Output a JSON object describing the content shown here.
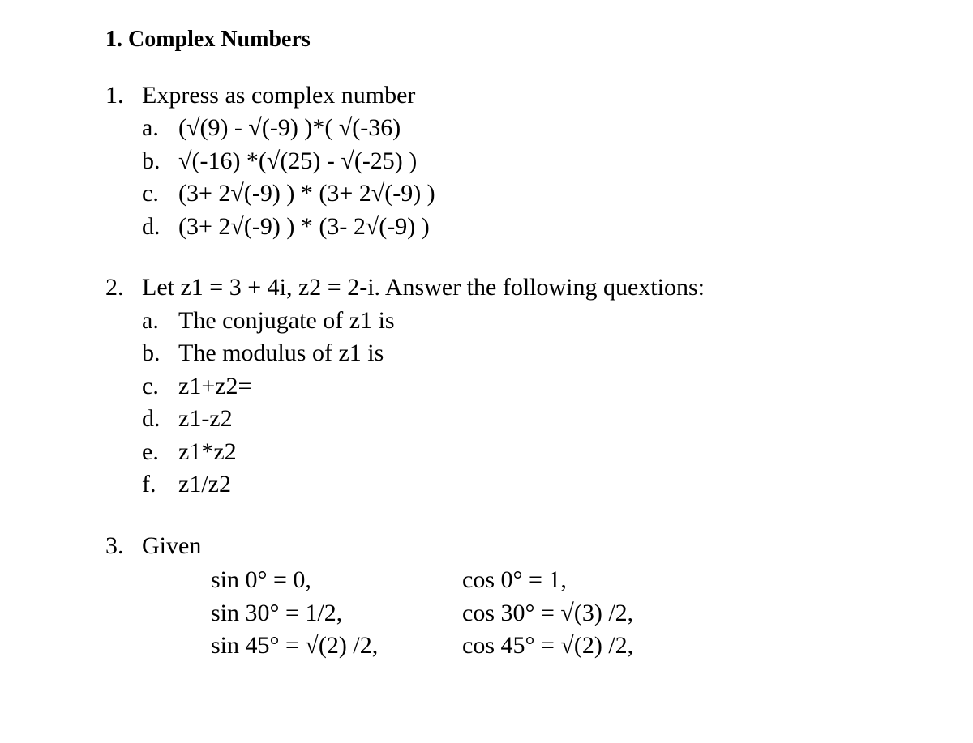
{
  "section": {
    "number": "1.",
    "title": "Complex Numbers"
  },
  "problems": [
    {
      "num": "1.",
      "text": "Express as complex number",
      "items": [
        {
          "letter": "a.",
          "text": "(√(9) - √(-9) )*( √(-36)"
        },
        {
          "letter": "b.",
          "text": "√(-16) *(√(25) - √(-25) )"
        },
        {
          "letter": "c.",
          "text": "(3+ 2√(-9) ) * (3+ 2√(-9) )"
        },
        {
          "letter": "d.",
          "text": "(3+ 2√(-9) ) * (3- 2√(-9) )"
        }
      ]
    },
    {
      "num": "2.",
      "text": "Let z1 = 3 + 4i, z2 = 2-i. Answer the following quextions:",
      "items": [
        {
          "letter": "a.",
          "text": "The conjugate of z1 is"
        },
        {
          "letter": "b.",
          "text": "The modulus of z1 is"
        },
        {
          "letter": "c.",
          "text": "z1+z2="
        },
        {
          "letter": "d.",
          "text": "z1-z2"
        },
        {
          "letter": "e.",
          "text": "z1*z2"
        },
        {
          "letter": "f.",
          "text": "z1/z2"
        }
      ]
    }
  ],
  "problem3": {
    "num": "3.",
    "text": "Given",
    "rows": [
      {
        "left": "sin 0° = 0,",
        "right": "cos 0° = 1,"
      },
      {
        "left": "sin 30° = 1/2,",
        "right": "cos 30° = √(3) /2,"
      },
      {
        "left": "sin 45° = √(2) /2,",
        "right": "cos 45° = √(2) /2,"
      }
    ]
  }
}
